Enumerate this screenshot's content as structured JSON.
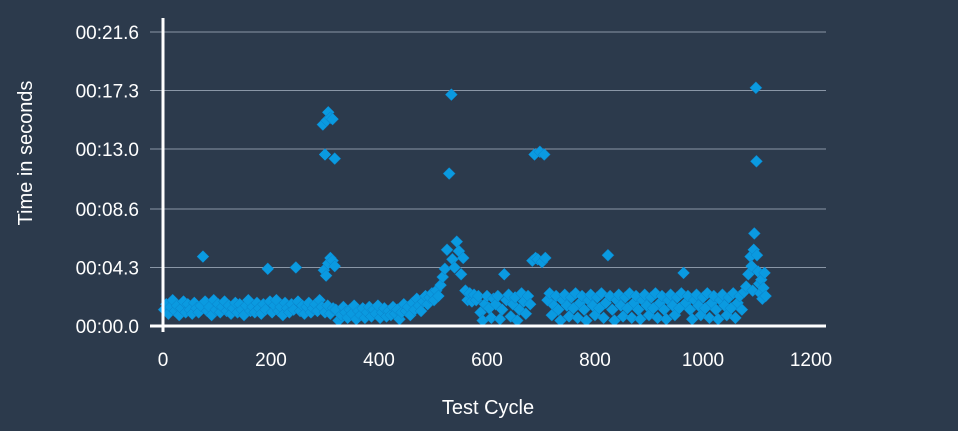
{
  "chart_data": {
    "type": "scatter",
    "title": "",
    "xlabel": "Test Cycle",
    "ylabel": "Time in seconds",
    "xlim": [
      0,
      1200
    ],
    "ylim": [
      0,
      21.6
    ],
    "x_ticks": [
      0,
      200,
      400,
      600,
      800,
      1000,
      1200
    ],
    "x_tick_labels": [
      "0",
      "200",
      "400",
      "600",
      "800",
      "1000",
      "1200"
    ],
    "y_ticks": [
      0,
      4.3,
      8.6,
      13.0,
      17.3,
      21.6
    ],
    "y_tick_labels": [
      "00:00.0",
      "00:04.3",
      "00:08.6",
      "00:13.0",
      "00:17.3",
      "00:21.6"
    ],
    "grid": "horizontal",
    "marker": "diamond",
    "marker_color": "#0a9ae0",
    "background_color": "#2c3a4c",
    "series": [
      {
        "points": [
          [
            2,
            1.2
          ],
          [
            6,
            1.6
          ],
          [
            10,
            0.9
          ],
          [
            14,
            1.4
          ],
          [
            18,
            1.9
          ],
          [
            22,
            1.1
          ],
          [
            26,
            1.5
          ],
          [
            30,
            0.8
          ],
          [
            34,
            1.3
          ],
          [
            38,
            1.8
          ],
          [
            42,
            1.0
          ],
          [
            46,
            1.6
          ],
          [
            50,
            1.2
          ],
          [
            54,
            0.9
          ],
          [
            58,
            1.7
          ],
          [
            62,
            1.3
          ],
          [
            66,
            1.0
          ],
          [
            70,
            1.5
          ],
          [
            74,
            5.1
          ],
          [
            78,
            1.8
          ],
          [
            82,
            1.1
          ],
          [
            86,
            1.4
          ],
          [
            90,
            0.8
          ],
          [
            94,
            1.9
          ],
          [
            98,
            1.2
          ],
          [
            102,
            1.6
          ],
          [
            106,
            1.0
          ],
          [
            110,
            1.4
          ],
          [
            114,
            1.8
          ],
          [
            118,
            1.1
          ],
          [
            122,
            1.5
          ],
          [
            126,
            0.9
          ],
          [
            130,
            1.3
          ],
          [
            134,
            1.7
          ],
          [
            138,
            1.0
          ],
          [
            142,
            1.6
          ],
          [
            146,
            1.2
          ],
          [
            150,
            0.8
          ],
          [
            154,
            1.5
          ],
          [
            158,
            1.9
          ],
          [
            162,
            1.1
          ],
          [
            166,
            1.4
          ],
          [
            170,
            1.0
          ],
          [
            174,
            1.7
          ],
          [
            178,
            1.3
          ],
          [
            182,
            0.9
          ],
          [
            186,
            1.6
          ],
          [
            190,
            1.2
          ],
          [
            194,
            4.2
          ],
          [
            198,
            1.8
          ],
          [
            202,
            1.0
          ],
          [
            206,
            1.5
          ],
          [
            210,
            1.9
          ],
          [
            214,
            1.1
          ],
          [
            218,
            1.4
          ],
          [
            222,
            0.8
          ],
          [
            226,
            1.7
          ],
          [
            230,
            1.3
          ],
          [
            234,
            1.0
          ],
          [
            238,
            1.6
          ],
          [
            242,
            1.2
          ],
          [
            246,
            4.3
          ],
          [
            250,
            1.8
          ],
          [
            254,
            1.1
          ],
          [
            258,
            1.5
          ],
          [
            262,
            0.9
          ],
          [
            266,
            1.4
          ],
          [
            270,
            1.7
          ],
          [
            274,
            1.0
          ],
          [
            278,
            1.3
          ],
          [
            282,
            1.6
          ],
          [
            286,
            1.1
          ],
          [
            290,
            1.9
          ],
          [
            294,
            1.4
          ],
          [
            296,
            14.8
          ],
          [
            300,
            12.6
          ],
          [
            303,
            15.1
          ],
          [
            306,
            15.7
          ],
          [
            310,
            15.3
          ],
          [
            314,
            15.2
          ],
          [
            318,
            12.3
          ],
          [
            298,
            4.1
          ],
          [
            302,
            3.7
          ],
          [
            306,
            4.6
          ],
          [
            310,
            5.0
          ],
          [
            314,
            4.8
          ],
          [
            318,
            4.4
          ],
          [
            300,
            1.0
          ],
          [
            305,
            1.5
          ],
          [
            310,
            0.9
          ],
          [
            315,
            1.3
          ],
          [
            320,
            1.2
          ],
          [
            325,
            0.4
          ],
          [
            330,
            0.8
          ],
          [
            334,
            1.4
          ],
          [
            338,
            1.0
          ],
          [
            342,
            0.6
          ],
          [
            346,
            1.2
          ],
          [
            350,
            0.9
          ],
          [
            354,
            1.5
          ],
          [
            358,
            0.5
          ],
          [
            362,
            1.1
          ],
          [
            366,
            0.8
          ],
          [
            370,
            1.3
          ],
          [
            374,
            0.6
          ],
          [
            378,
            1.0
          ],
          [
            382,
            1.4
          ],
          [
            386,
            0.7
          ],
          [
            390,
            1.2
          ],
          [
            394,
            0.9
          ],
          [
            398,
            1.5
          ],
          [
            402,
            0.6
          ],
          [
            406,
            1.0
          ],
          [
            410,
            1.3
          ],
          [
            414,
            0.7
          ],
          [
            418,
            1.1
          ],
          [
            422,
            0.8
          ],
          [
            426,
            1.4
          ],
          [
            430,
            0.9
          ],
          [
            434,
            1.2
          ],
          [
            438,
            0.5
          ],
          [
            442,
            1.0
          ],
          [
            446,
            1.6
          ],
          [
            450,
            1.1
          ],
          [
            454,
            1.4
          ],
          [
            458,
            0.8
          ],
          [
            462,
            1.7
          ],
          [
            466,
            1.2
          ],
          [
            470,
            2.0
          ],
          [
            474,
            1.5
          ],
          [
            478,
            1.1
          ],
          [
            482,
            1.8
          ],
          [
            486,
            2.2
          ],
          [
            490,
            1.6
          ],
          [
            494,
            2.1
          ],
          [
            498,
            2.4
          ],
          [
            502,
            1.9
          ],
          [
            506,
            2.6
          ],
          [
            510,
            2.2
          ],
          [
            514,
            3.0
          ],
          [
            518,
            3.6
          ],
          [
            522,
            4.2
          ],
          [
            526,
            5.6
          ],
          [
            530,
            11.2
          ],
          [
            534,
            17.0
          ],
          [
            536,
            4.9
          ],
          [
            540,
            4.3
          ],
          [
            544,
            6.2
          ],
          [
            548,
            5.5
          ],
          [
            552,
            3.8
          ],
          [
            556,
            5.0
          ],
          [
            560,
            2.6
          ],
          [
            564,
            1.9
          ],
          [
            568,
            2.4
          ],
          [
            572,
            1.8
          ],
          [
            576,
            2.3
          ],
          [
            580,
            1.9
          ],
          [
            584,
            2.2
          ],
          [
            588,
            1.0
          ],
          [
            592,
            0.4
          ],
          [
            596,
            1.6
          ],
          [
            600,
            2.2
          ],
          [
            604,
            1.3
          ],
          [
            608,
            0.6
          ],
          [
            612,
            2.0
          ],
          [
            616,
            1.6
          ],
          [
            620,
            2.2
          ],
          [
            624,
            0.5
          ],
          [
            628,
            1.2
          ],
          [
            632,
            3.8
          ],
          [
            636,
            1.9
          ],
          [
            640,
            2.3
          ],
          [
            644,
            0.7
          ],
          [
            648,
            1.6
          ],
          [
            652,
            2.1
          ],
          [
            656,
            0.4
          ],
          [
            660,
            1.2
          ],
          [
            664,
            2.4
          ],
          [
            668,
            1.8
          ],
          [
            672,
            0.9
          ],
          [
            676,
            2.2
          ],
          [
            680,
            1.6
          ],
          [
            684,
            4.8
          ],
          [
            688,
            12.6
          ],
          [
            690,
            5.0
          ],
          [
            694,
            4.9
          ],
          [
            698,
            12.8
          ],
          [
            702,
            4.7
          ],
          [
            706,
            12.6
          ],
          [
            708,
            5.0
          ],
          [
            712,
            1.9
          ],
          [
            716,
            2.4
          ],
          [
            720,
            0.8
          ],
          [
            724,
            1.5
          ],
          [
            728,
            2.2
          ],
          [
            732,
            1.2
          ],
          [
            736,
            0.4
          ],
          [
            740,
            1.9
          ],
          [
            744,
            2.3
          ],
          [
            748,
            1.5
          ],
          [
            752,
            0.7
          ],
          [
            756,
            2.1
          ],
          [
            760,
            1.3
          ],
          [
            764,
            2.4
          ],
          [
            768,
            0.6
          ],
          [
            772,
            1.7
          ],
          [
            776,
            2.2
          ],
          [
            780,
            1.2
          ],
          [
            784,
            0.4
          ],
          [
            788,
            1.9
          ],
          [
            792,
            2.3
          ],
          [
            796,
            1.5
          ],
          [
            800,
            0.8
          ],
          [
            804,
            2.1
          ],
          [
            808,
            1.3
          ],
          [
            812,
            2.4
          ],
          [
            816,
            0.6
          ],
          [
            820,
            1.7
          ],
          [
            824,
            5.2
          ],
          [
            828,
            2.2
          ],
          [
            832,
            1.2
          ],
          [
            836,
            0.4
          ],
          [
            840,
            1.9
          ],
          [
            844,
            2.3
          ],
          [
            848,
            1.5
          ],
          [
            852,
            0.7
          ],
          [
            856,
            2.1
          ],
          [
            860,
            1.3
          ],
          [
            864,
            2.4
          ],
          [
            868,
            0.6
          ],
          [
            872,
            1.7
          ],
          [
            876,
            2.2
          ],
          [
            880,
            1.2
          ],
          [
            884,
            0.5
          ],
          [
            888,
            1.9
          ],
          [
            892,
            2.3
          ],
          [
            896,
            1.5
          ],
          [
            900,
            0.8
          ],
          [
            904,
            2.1
          ],
          [
            908,
            1.3
          ],
          [
            912,
            2.4
          ],
          [
            916,
            0.6
          ],
          [
            920,
            1.7
          ],
          [
            924,
            2.2
          ],
          [
            928,
            1.2
          ],
          [
            932,
            0.5
          ],
          [
            936,
            1.9
          ],
          [
            940,
            2.3
          ],
          [
            944,
            1.5
          ],
          [
            948,
            0.8
          ],
          [
            952,
            2.1
          ],
          [
            956,
            1.3
          ],
          [
            960,
            2.4
          ],
          [
            964,
            3.9
          ],
          [
            968,
            1.7
          ],
          [
            972,
            2.2
          ],
          [
            976,
            1.2
          ],
          [
            980,
            0.5
          ],
          [
            984,
            1.9
          ],
          [
            988,
            2.3
          ],
          [
            992,
            1.5
          ],
          [
            996,
            0.8
          ],
          [
            1000,
            2.1
          ],
          [
            1004,
            1.3
          ],
          [
            1008,
            2.4
          ],
          [
            1012,
            0.6
          ],
          [
            1016,
            1.7
          ],
          [
            1020,
            2.2
          ],
          [
            1024,
            1.2
          ],
          [
            1028,
            0.5
          ],
          [
            1032,
            1.9
          ],
          [
            1036,
            2.3
          ],
          [
            1040,
            1.5
          ],
          [
            1044,
            0.8
          ],
          [
            1048,
            2.1
          ],
          [
            1052,
            1.3
          ],
          [
            1056,
            2.4
          ],
          [
            1060,
            0.6
          ],
          [
            1064,
            1.7
          ],
          [
            1068,
            2.2
          ],
          [
            1072,
            1.2
          ],
          [
            1076,
            2.5
          ],
          [
            1080,
            2.9
          ],
          [
            1084,
            3.8
          ],
          [
            1088,
            5.1
          ],
          [
            1090,
            4.4
          ],
          [
            1092,
            2.6
          ],
          [
            1094,
            5.6
          ],
          [
            1095,
            6.8
          ],
          [
            1098,
            17.5
          ],
          [
            1099,
            12.1
          ],
          [
            1100,
            5.2
          ],
          [
            1102,
            4.0
          ],
          [
            1104,
            3.1
          ],
          [
            1106,
            2.4
          ],
          [
            1108,
            3.4
          ],
          [
            1110,
            2.0
          ],
          [
            1112,
            2.8
          ],
          [
            1114,
            3.9
          ],
          [
            1116,
            2.2
          ]
        ]
      }
    ]
  }
}
